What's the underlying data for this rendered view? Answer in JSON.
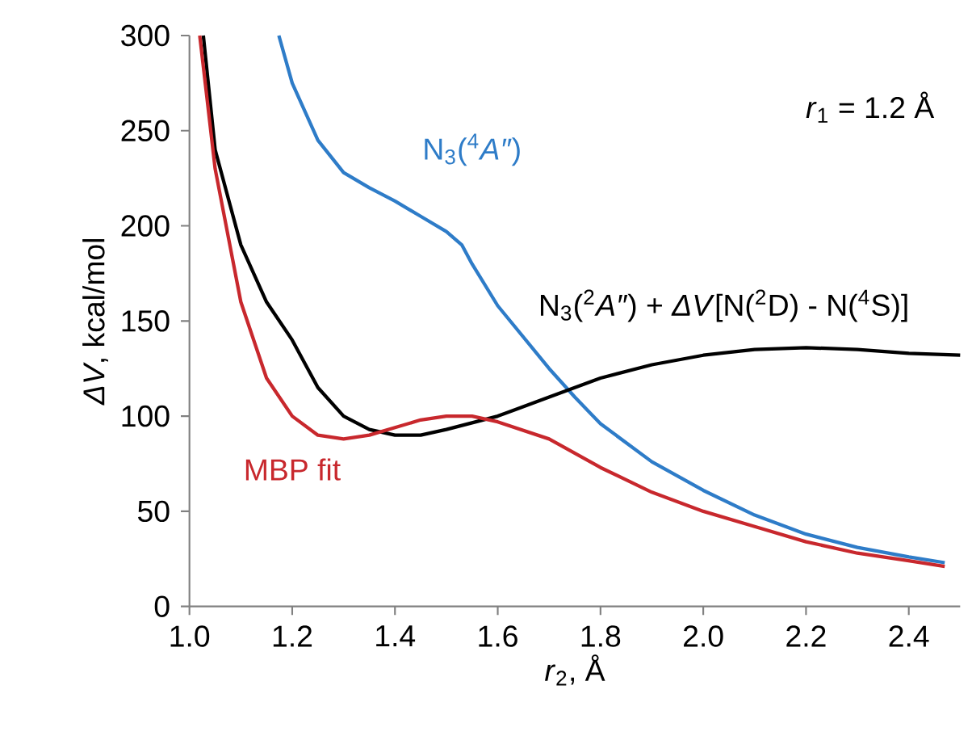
{
  "chart_data": {
    "type": "line",
    "xlabel": "*r*$_{2}$, Å",
    "ylabel": "*ΔV*, kcal/mol",
    "annotations": [
      "*r*$_{1}$ = 1.2 Å"
    ],
    "xlim": [
      1.0,
      2.5
    ],
    "ylim": [
      0,
      300
    ],
    "xticks": [
      {
        "value": 1.0,
        "label": "1.0"
      },
      {
        "value": 1.2,
        "label": "1.2"
      },
      {
        "value": 1.4,
        "label": "1.4"
      },
      {
        "value": 1.6,
        "label": "1.6"
      },
      {
        "value": 1.8,
        "label": "1.8"
      },
      {
        "value": 2.0,
        "label": "2.0"
      },
      {
        "value": 2.2,
        "label": "2.2"
      },
      {
        "value": 2.4,
        "label": "2.4"
      }
    ],
    "yticks": [
      0,
      50,
      100,
      150,
      200,
      250,
      300
    ],
    "grid": false,
    "legend": false,
    "marker": "none",
    "line_style": "solid",
    "series": [
      {
        "name": "N$_{3}$($^{4}$*A″*)",
        "color": "#2e7cc8",
        "x": [
          1.174,
          1.2,
          1.25,
          1.3,
          1.35,
          1.4,
          1.45,
          1.5,
          1.53,
          1.55,
          1.6,
          1.7,
          1.75,
          1.8,
          1.9,
          2.0,
          2.1,
          2.2,
          2.3,
          2.4,
          2.47
        ],
        "values": [
          300,
          275,
          245,
          228,
          220,
          213,
          205,
          197,
          190,
          180,
          158,
          125,
          110,
          96,
          76,
          61,
          48,
          38,
          31,
          26,
          23
        ]
      },
      {
        "name": "N$_{3}$($^{2}$*A″*) + *ΔV*[N($^{2}$D) - N($^{4}$S)]",
        "color": "#000000",
        "x": [
          1.027,
          1.05,
          1.1,
          1.15,
          1.2,
          1.25,
          1.3,
          1.35,
          1.4,
          1.45,
          1.5,
          1.6,
          1.7,
          1.8,
          1.9,
          2.0,
          2.1,
          2.2,
          2.3,
          2.4,
          2.5
        ],
        "values": [
          300,
          240,
          190,
          160,
          140,
          115,
          100,
          93,
          90,
          90,
          93,
          100,
          110,
          120,
          127,
          132,
          135,
          136,
          135,
          133,
          132
        ]
      },
      {
        "name": "MBP fit",
        "color": "#c8282d",
        "x": [
          1.02,
          1.05,
          1.1,
          1.15,
          1.2,
          1.25,
          1.3,
          1.35,
          1.4,
          1.45,
          1.5,
          1.55,
          1.6,
          1.7,
          1.8,
          1.9,
          2.0,
          2.1,
          2.2,
          2.3,
          2.4,
          2.47
        ],
        "values": [
          300,
          230,
          160,
          120,
          100,
          90,
          88,
          90,
          94,
          98,
          100,
          100,
          97,
          88,
          73,
          60,
          50,
          42,
          34,
          28,
          24,
          21
        ]
      }
    ]
  }
}
